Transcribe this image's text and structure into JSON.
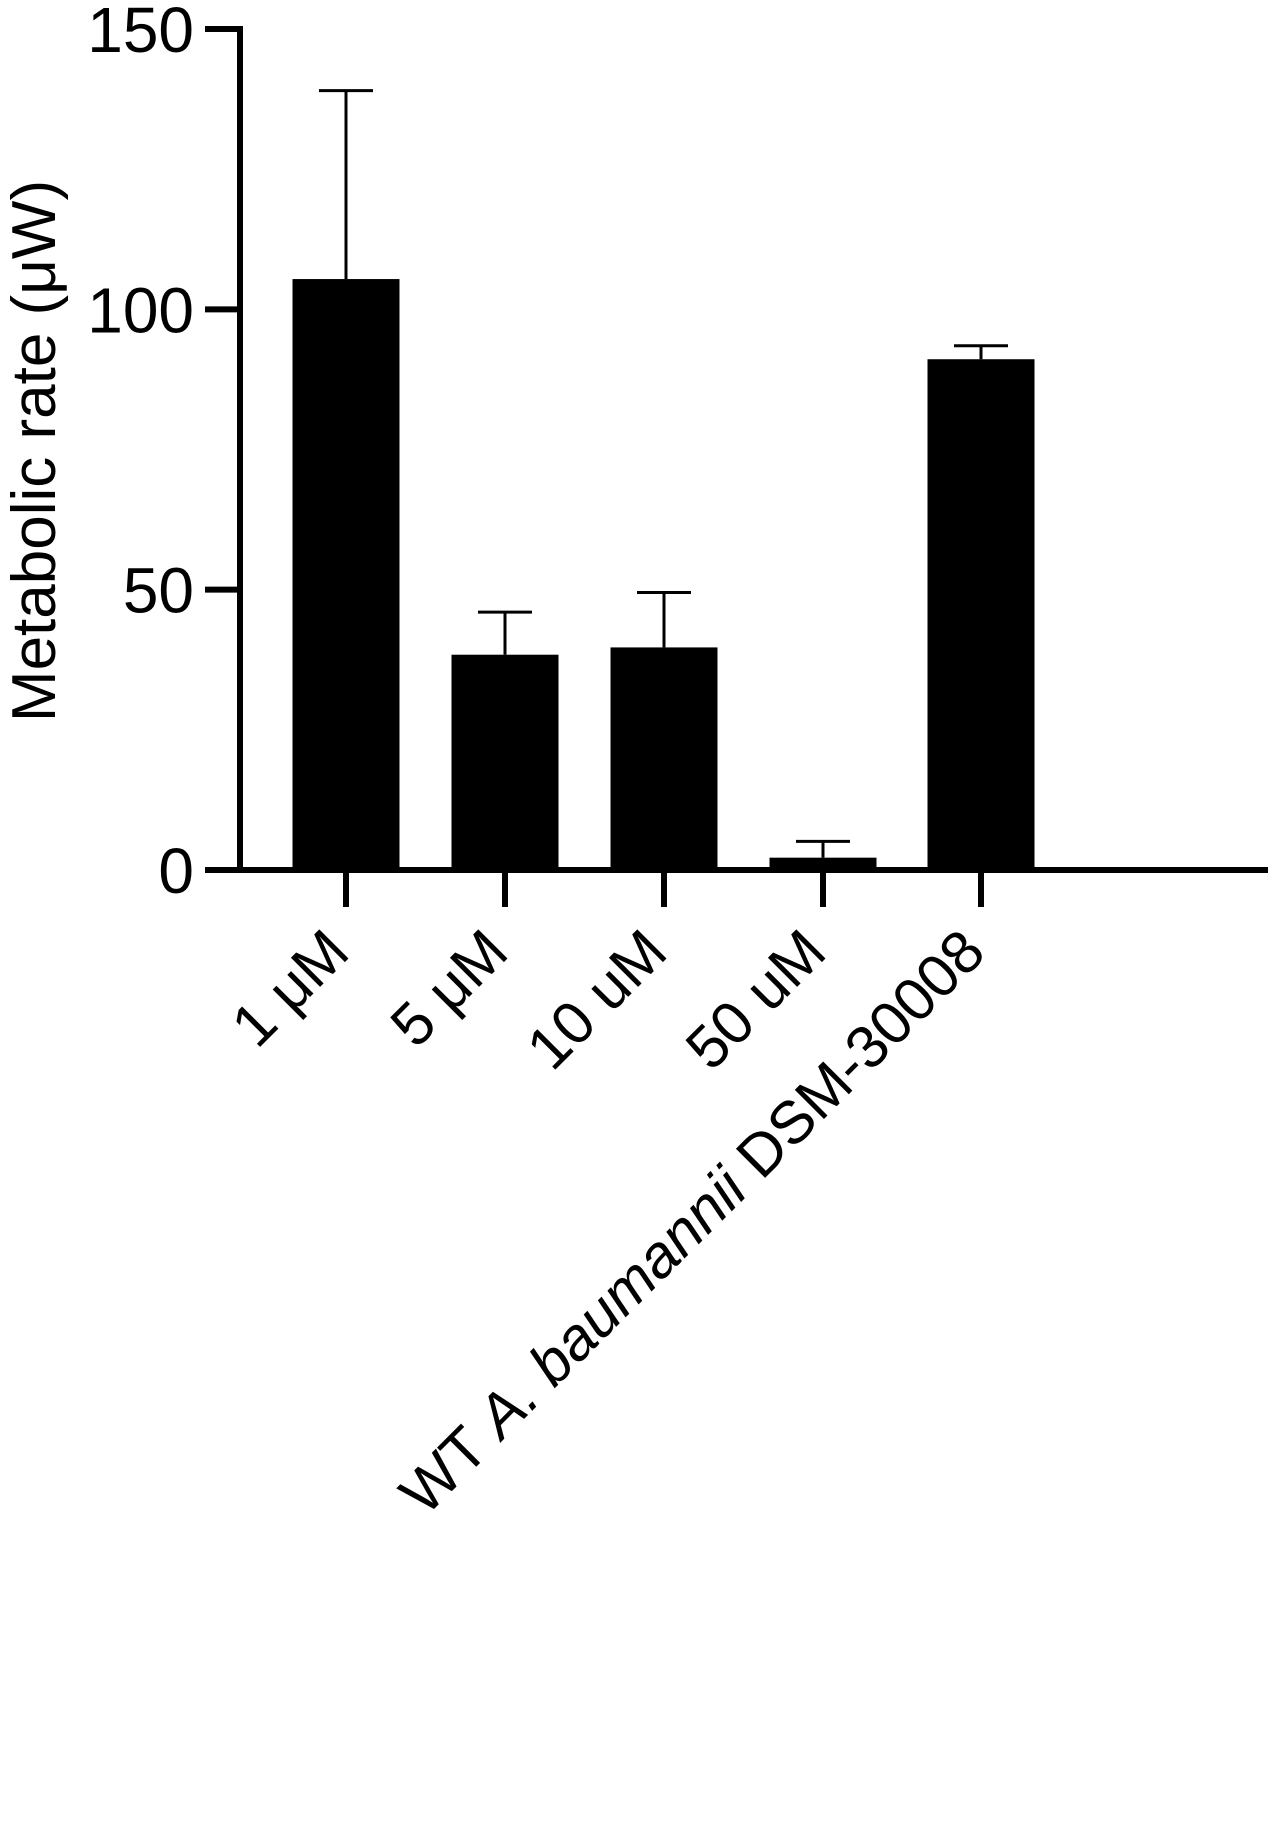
{
  "chart_data": {
    "type": "bar",
    "ylabel": "Metabolic rate (μW)",
    "ylim": [
      0,
      150
    ],
    "yticks": [
      0,
      50,
      100,
      150
    ],
    "ytick_labels": [
      "0",
      "50",
      "100",
      "150"
    ],
    "categories": [
      "1 μM",
      "5 μM",
      "10 uM",
      "50 uM",
      "WT A. baumannii DSM-30008"
    ],
    "category_label_parts": [
      [
        {
          "text": "1 μM",
          "italic": false
        }
      ],
      [
        {
          "text": "5 μM",
          "italic": false
        }
      ],
      [
        {
          "text": "10 uM",
          "italic": false
        }
      ],
      [
        {
          "text": "50 uM",
          "italic": false
        }
      ],
      [
        {
          "text": "WT ",
          "italic": false
        },
        {
          "text": "A. baumannii",
          "italic": true
        },
        {
          "text": " DSM-30008",
          "italic": false
        }
      ]
    ],
    "values": [
      105.4,
      38.4,
      39.7,
      2.2,
      91.1
    ],
    "errors": [
      33.6,
      7.6,
      9.8,
      2.9,
      2.4
    ],
    "grid": false,
    "bar_color": "#000000",
    "axis_color": "#000000"
  }
}
